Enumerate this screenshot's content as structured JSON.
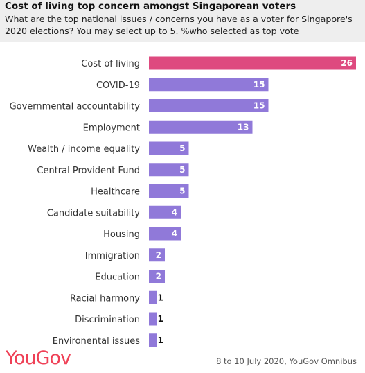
{
  "title": "Cost of living top concern amongst Singaporean voters",
  "subtitle": "What are the top national issues / concerns you have as a voter for Singapore's 2020 elections? You may select up to 5. %who selected as top vote",
  "logo": "YouGov",
  "source": "8 to 10 July 2020, YouGov Omnibus",
  "colors": {
    "highlight": "#de4a7f",
    "bar": "#9079d9"
  },
  "chart_data": {
    "type": "bar",
    "orientation": "horizontal",
    "categories": [
      "Cost of living",
      "COVID-19",
      "Governmental accountability",
      "Employment",
      "Wealth / income equality",
      "Central Provident Fund",
      "Healthcare",
      "Candidate suitability",
      "Housing",
      "Immigration",
      "Education",
      "Racial harmony",
      "Discrimination",
      "Environental issues"
    ],
    "values": [
      26,
      15,
      15,
      13,
      5,
      5,
      5,
      4,
      4,
      2,
      2,
      1,
      1,
      1
    ],
    "highlight_index": 0,
    "xlim": [
      0,
      26
    ]
  }
}
